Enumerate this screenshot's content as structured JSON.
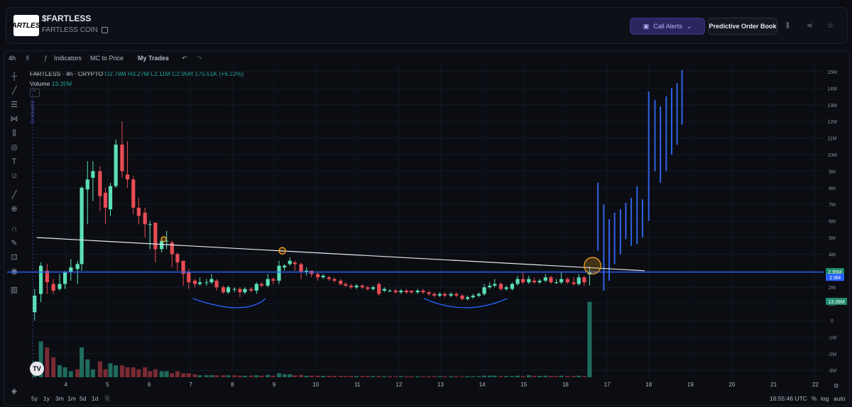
{
  "header": {
    "logo_text": "FARTLESS",
    "token_name": "$FARTLESS",
    "token_subname": "FARTLESS COIN",
    "call_alerts_label": "Call Alerts",
    "order_book_label": "Predictive Order Book",
    "icons": [
      "bars-icon",
      "share-icon",
      "star-icon"
    ]
  },
  "toolbar": {
    "interval": "4h",
    "indicators_label": "Indicators",
    "mc_to_price_label": "MC to Price",
    "my_trades_label": "My Trades"
  },
  "legend": {
    "symbol": "FARTLESS · 4h · CRYPTO",
    "open": "O2.78M",
    "high": "H3.27M",
    "low": "L2.11M",
    "close": "C2.95M",
    "change": "175.51K (+6.32%)",
    "volume_label": "Volume",
    "volume_value": "13.39M"
  },
  "bottom": {
    "ranges": [
      "5y",
      "1y",
      "3m",
      "1m",
      "5d",
      "1d"
    ],
    "time": "16:55:46 UTC",
    "percent_label": "%",
    "log_label": "log",
    "auto_label": "auto"
  },
  "colors": {
    "up": "#5ce0b8",
    "down": "#e84c55",
    "accent": "#2962ff",
    "highlight": "#f0a020"
  },
  "chart_data": {
    "type": "candlestick",
    "y_axis_ticks": [
      "15M",
      "14M",
      "13M",
      "12M",
      "11M",
      "10M",
      "9M",
      "8M",
      "7M",
      "6M",
      "5M",
      "4M",
      "3M",
      "2M",
      "1M",
      "0",
      "-1M",
      "-2M",
      "-3M"
    ],
    "ylim": [
      -3,
      15.2
    ],
    "x_ticks": [
      "4",
      "5",
      "6",
      "7",
      "8",
      "9",
      "10",
      "11",
      "12",
      "13",
      "14",
      "15",
      "16",
      "17",
      "18",
      "19",
      "20",
      "21",
      "22"
    ],
    "xlim": [
      3.1,
      22.2
    ],
    "price_labels": [
      {
        "value": "2.95M",
        "price": 2.95
      },
      {
        "value": "2.9M",
        "price": 2.6
      }
    ],
    "volume_label": "13.39M",
    "graduated_label": "Graduated",
    "graduated_x": 3.2,
    "horizontal_line": 2.92,
    "trendline": [
      [
        3.3,
        5.0
      ],
      [
        17.9,
        3.0
      ]
    ],
    "circles": [
      {
        "x": 6.35,
        "y": 4.9,
        "r": 0.15
      },
      {
        "x": 9.2,
        "y": 4.2,
        "r": 0.2
      },
      {
        "x": 16.65,
        "y": 3.3,
        "r": 0.5
      }
    ],
    "arcs": [
      [
        7.05,
        8.3,
        8.8
      ],
      [
        12.6,
        13.6,
        14.6
      ]
    ],
    "candles": [
      [
        3.25,
        0.5,
        1.5,
        0.0,
        1.9
      ],
      [
        3.4,
        1.6,
        3.3,
        1.1,
        3.5
      ],
      [
        3.55,
        3.0,
        2.3,
        1.6,
        3.4
      ],
      [
        3.7,
        2.2,
        1.8,
        1.6,
        2.5
      ],
      [
        3.85,
        1.9,
        2.2,
        1.8,
        2.8
      ],
      [
        3.98,
        2.2,
        2.9,
        1.9,
        3.0
      ],
      [
        4.12,
        2.9,
        3.2,
        2.4,
        3.7
      ],
      [
        4.28,
        3.1,
        3.4,
        2.2,
        3.6
      ],
      [
        4.38,
        3.4,
        8.0,
        3.0,
        8.1
      ],
      [
        4.52,
        7.9,
        8.5,
        5.8,
        9.6
      ],
      [
        4.65,
        8.6,
        9.0,
        7.2,
        9.6
      ],
      [
        4.82,
        9.0,
        7.5,
        6.6,
        9.3
      ],
      [
        4.95,
        7.7,
        6.8,
        5.8,
        8.0
      ],
      [
        5.07,
        6.7,
        8.1,
        6.3,
        8.3
      ],
      [
        5.2,
        8.1,
        10.6,
        8.0,
        10.9
      ],
      [
        5.35,
        10.6,
        9.0,
        8.6,
        12.0
      ],
      [
        5.48,
        8.8,
        8.5,
        8.0,
        10.8
      ],
      [
        5.62,
        8.5,
        6.8,
        6.4,
        8.7
      ],
      [
        5.75,
        6.8,
        6.3,
        5.8,
        7.4
      ],
      [
        5.9,
        6.5,
        5.8,
        5.0,
        6.8
      ],
      [
        6.02,
        5.8,
        5.8,
        4.3,
        6.0
      ],
      [
        6.15,
        5.9,
        4.3,
        3.5,
        5.9
      ],
      [
        6.3,
        4.3,
        4.8,
        4.1,
        5.0
      ],
      [
        6.42,
        4.8,
        4.8,
        4.3,
        5.4
      ],
      [
        6.55,
        4.7,
        4.0,
        3.2,
        4.8
      ],
      [
        6.68,
        4.0,
        3.5,
        3.0,
        4.1
      ],
      [
        6.82,
        3.6,
        2.8,
        2.1,
        3.6
      ],
      [
        6.95,
        2.9,
        2.3,
        1.9,
        3.1
      ],
      [
        7.1,
        2.4,
        2.2,
        2.0,
        2.5
      ],
      [
        7.22,
        2.2,
        2.3,
        2.1,
        2.6
      ],
      [
        7.38,
        2.3,
        2.3,
        2.1,
        2.5
      ],
      [
        7.5,
        2.3,
        2.5,
        2.2,
        2.8
      ],
      [
        7.62,
        2.4,
        2.0,
        1.8,
        2.5
      ],
      [
        7.78,
        2.0,
        1.7,
        1.6,
        2.1
      ],
      [
        7.9,
        1.7,
        2.0,
        1.6,
        2.1
      ],
      [
        8.05,
        1.9,
        1.9,
        1.7,
        2.0
      ],
      [
        8.18,
        1.9,
        1.7,
        1.4,
        2.0
      ],
      [
        8.3,
        1.7,
        1.9,
        1.6,
        2.0
      ],
      [
        8.45,
        1.9,
        1.8,
        1.7,
        2.0
      ],
      [
        8.58,
        1.8,
        2.2,
        1.6,
        2.3
      ],
      [
        8.7,
        2.2,
        2.1,
        2.0,
        2.3
      ],
      [
        8.85,
        2.1,
        2.5,
        2.0,
        2.8
      ],
      [
        8.98,
        2.5,
        2.4,
        2.2,
        2.6
      ],
      [
        9.12,
        2.4,
        3.3,
        2.2,
        3.6
      ],
      [
        9.25,
        3.2,
        3.3,
        3.0,
        3.4
      ],
      [
        9.38,
        3.4,
        3.6,
        3.3,
        3.8
      ],
      [
        9.5,
        3.5,
        3.4,
        3.0,
        3.6
      ],
      [
        9.65,
        3.4,
        2.9,
        2.5,
        3.5
      ],
      [
        9.78,
        2.9,
        3.0,
        2.7,
        3.2
      ],
      [
        9.9,
        3.0,
        2.8,
        2.6,
        3.0
      ],
      [
        10.05,
        2.8,
        2.6,
        2.4,
        2.9
      ],
      [
        10.18,
        2.6,
        2.7,
        2.5,
        2.8
      ],
      [
        10.32,
        2.6,
        2.5,
        2.4,
        2.7
      ],
      [
        10.45,
        2.5,
        2.4,
        2.3,
        2.6
      ],
      [
        10.6,
        2.4,
        2.2,
        2.1,
        2.5
      ],
      [
        10.72,
        2.2,
        2.1,
        2.0,
        2.3
      ],
      [
        10.85,
        2.1,
        2.0,
        1.9,
        2.2
      ],
      [
        10.98,
        2.0,
        2.1,
        1.9,
        2.2
      ],
      [
        11.12,
        2.1,
        2.0,
        1.9,
        2.2
      ],
      [
        11.25,
        2.0,
        1.9,
        1.8,
        2.1
      ],
      [
        11.38,
        1.9,
        2.0,
        1.8,
        2.1
      ],
      [
        11.52,
        2.2,
        1.6,
        1.5,
        2.3
      ],
      [
        11.65,
        1.8,
        1.9,
        1.7,
        2.0
      ],
      [
        11.78,
        1.8,
        1.8,
        1.7,
        1.9
      ],
      [
        11.92,
        1.8,
        1.7,
        1.6,
        1.9
      ],
      [
        12.05,
        1.7,
        1.8,
        1.6,
        1.9
      ],
      [
        12.18,
        1.8,
        1.7,
        1.6,
        1.9
      ],
      [
        12.3,
        1.8,
        1.7,
        1.6,
        1.8
      ],
      [
        12.45,
        1.7,
        1.8,
        1.6,
        1.9
      ],
      [
        12.58,
        1.8,
        1.7,
        1.6,
        1.9
      ],
      [
        12.72,
        1.7,
        1.6,
        1.5,
        1.8
      ],
      [
        12.85,
        1.6,
        1.5,
        1.4,
        1.7
      ],
      [
        12.98,
        1.5,
        1.6,
        1.4,
        1.7
      ],
      [
        13.1,
        1.6,
        1.5,
        1.4,
        1.7
      ],
      [
        13.25,
        1.5,
        1.6,
        1.4,
        1.7
      ],
      [
        13.38,
        1.6,
        1.5,
        1.4,
        1.7
      ],
      [
        13.52,
        1.5,
        1.3,
        1.2,
        1.6
      ],
      [
        13.65,
        1.3,
        1.4,
        1.2,
        1.5
      ],
      [
        13.78,
        1.4,
        1.5,
        1.3,
        1.6
      ],
      [
        13.92,
        1.5,
        1.6,
        1.4,
        1.7
      ],
      [
        14.05,
        1.6,
        2.0,
        1.5,
        2.2
      ],
      [
        14.18,
        2.0,
        2.1,
        1.9,
        2.3
      ],
      [
        14.3,
        2.1,
        2.2,
        2.0,
        2.5
      ],
      [
        14.45,
        2.2,
        1.9,
        1.8,
        2.3
      ],
      [
        14.58,
        1.9,
        2.0,
        1.8,
        2.1
      ],
      [
        14.72,
        1.9,
        2.2,
        1.8,
        2.3
      ],
      [
        14.85,
        2.2,
        2.5,
        2.1,
        2.7
      ],
      [
        14.98,
        2.5,
        2.3,
        2.2,
        2.9
      ],
      [
        15.12,
        2.3,
        2.5,
        2.2,
        2.7
      ],
      [
        15.25,
        2.4,
        2.3,
        2.2,
        2.6
      ],
      [
        15.38,
        2.3,
        2.4,
        2.2,
        2.5
      ],
      [
        15.52,
        2.4,
        2.6,
        2.3,
        2.8
      ],
      [
        15.65,
        2.6,
        2.3,
        2.2,
        2.7
      ],
      [
        15.78,
        2.3,
        2.3,
        2.2,
        2.5
      ],
      [
        15.9,
        2.3,
        2.5,
        2.2,
        2.9
      ],
      [
        16.05,
        2.5,
        2.3,
        2.2,
        2.6
      ],
      [
        16.2,
        2.3,
        2.2,
        2.1,
        2.6
      ],
      [
        16.32,
        2.2,
        2.6,
        2.1,
        2.8
      ],
      [
        16.45,
        2.6,
        2.3,
        2.1,
        2.7
      ],
      [
        16.58,
        2.78,
        2.95,
        2.11,
        3.27
      ]
    ],
    "projection_lines": [
      [
        16.78,
        4.2,
        8.3
      ],
      [
        16.92,
        1.8,
        7.0
      ],
      [
        17.05,
        2.4,
        6.1
      ],
      [
        17.18,
        3.4,
        6.5
      ],
      [
        17.32,
        4.0,
        6.7
      ],
      [
        17.45,
        4.9,
        7.1
      ],
      [
        17.58,
        4.5,
        7.4
      ],
      [
        17.72,
        4.6,
        8.1
      ],
      [
        17.85,
        5.0,
        7.3
      ],
      [
        18.0,
        6.0,
        13.8
      ],
      [
        18.15,
        9.0,
        13.3
      ],
      [
        18.28,
        8.3,
        12.9
      ],
      [
        18.42,
        9.0,
        13.5
      ],
      [
        18.55,
        10.0,
        14.0
      ],
      [
        18.68,
        10.6,
        14.3
      ],
      [
        18.8,
        11.8,
        15.1
      ]
    ],
    "volumes": [
      [
        3.25,
        0.8,
        1
      ],
      [
        3.4,
        1.8,
        1
      ],
      [
        3.55,
        1.5,
        0
      ],
      [
        3.7,
        1.0,
        0
      ],
      [
        3.85,
        0.6,
        1
      ],
      [
        3.98,
        0.5,
        1
      ],
      [
        4.12,
        0.3,
        1
      ],
      [
        4.28,
        0.4,
        0
      ],
      [
        4.38,
        1.5,
        1
      ],
      [
        4.52,
        0.9,
        1
      ],
      [
        4.65,
        0.4,
        1
      ],
      [
        4.82,
        0.8,
        0
      ],
      [
        4.95,
        0.4,
        0
      ],
      [
        5.07,
        0.7,
        1
      ],
      [
        5.2,
        0.6,
        1
      ],
      [
        5.35,
        0.6,
        0
      ],
      [
        5.48,
        0.5,
        0
      ],
      [
        5.62,
        0.5,
        0
      ],
      [
        5.75,
        0.4,
        0
      ],
      [
        5.9,
        0.5,
        0
      ],
      [
        6.02,
        0.3,
        0
      ],
      [
        6.15,
        0.4,
        0
      ],
      [
        6.3,
        0.3,
        1
      ],
      [
        6.42,
        0.3,
        1
      ],
      [
        6.55,
        0.2,
        0
      ],
      [
        6.68,
        0.3,
        0
      ],
      [
        6.82,
        0.2,
        0
      ],
      [
        6.95,
        0.2,
        0
      ],
      [
        7.1,
        0.15,
        0
      ],
      [
        7.22,
        0.1,
        1
      ],
      [
        7.38,
        0.1,
        1
      ],
      [
        7.5,
        0.1,
        1
      ],
      [
        7.62,
        0.1,
        0
      ],
      [
        7.78,
        0.1,
        0
      ],
      [
        7.9,
        0.1,
        1
      ],
      [
        8.05,
        0.1,
        0
      ],
      [
        8.18,
        0.08,
        0
      ],
      [
        8.3,
        0.08,
        1
      ],
      [
        8.45,
        0.08,
        0
      ],
      [
        8.58,
        0.1,
        1
      ],
      [
        8.7,
        0.08,
        0
      ],
      [
        8.85,
        0.12,
        1
      ],
      [
        8.98,
        0.08,
        0
      ],
      [
        9.12,
        0.2,
        1
      ],
      [
        9.25,
        0.15,
        1
      ],
      [
        9.38,
        0.15,
        1
      ],
      [
        9.5,
        0.1,
        0
      ],
      [
        9.65,
        0.12,
        0
      ],
      [
        9.78,
        0.08,
        1
      ],
      [
        9.9,
        0.08,
        0
      ],
      [
        10.05,
        0.08,
        0
      ],
      [
        10.18,
        0.07,
        1
      ],
      [
        10.32,
        0.07,
        0
      ],
      [
        10.45,
        0.07,
        0
      ],
      [
        10.6,
        0.07,
        0
      ],
      [
        10.72,
        0.06,
        0
      ],
      [
        10.85,
        0.06,
        0
      ],
      [
        10.98,
        0.06,
        1
      ],
      [
        11.12,
        0.06,
        0
      ],
      [
        11.25,
        0.06,
        0
      ],
      [
        11.38,
        0.06,
        1
      ],
      [
        11.52,
        0.06,
        0
      ],
      [
        11.65,
        0.05,
        1
      ],
      [
        11.78,
        0.05,
        0
      ],
      [
        11.92,
        0.05,
        0
      ],
      [
        12.05,
        0.05,
        1
      ],
      [
        12.18,
        0.05,
        0
      ],
      [
        12.3,
        0.05,
        0
      ],
      [
        12.45,
        0.05,
        1
      ],
      [
        12.58,
        0.05,
        0
      ],
      [
        12.72,
        0.05,
        0
      ],
      [
        12.85,
        0.05,
        0
      ],
      [
        12.98,
        0.05,
        1
      ],
      [
        13.1,
        0.05,
        0
      ],
      [
        13.25,
        0.05,
        1
      ],
      [
        13.38,
        0.05,
        0
      ],
      [
        13.52,
        0.05,
        0
      ],
      [
        13.65,
        0.05,
        1
      ],
      [
        13.78,
        0.05,
        1
      ],
      [
        13.92,
        0.05,
        1
      ],
      [
        14.05,
        0.08,
        1
      ],
      [
        14.18,
        0.08,
        1
      ],
      [
        14.3,
        0.08,
        1
      ],
      [
        14.45,
        0.06,
        0
      ],
      [
        14.58,
        0.06,
        1
      ],
      [
        14.72,
        0.06,
        1
      ],
      [
        14.85,
        0.08,
        1
      ],
      [
        14.98,
        0.06,
        0
      ],
      [
        15.12,
        0.1,
        1
      ],
      [
        15.25,
        0.07,
        0
      ],
      [
        15.38,
        0.07,
        1
      ],
      [
        15.52,
        0.08,
        1
      ],
      [
        15.65,
        0.07,
        0
      ],
      [
        15.78,
        0.06,
        0
      ],
      [
        15.9,
        0.08,
        1
      ],
      [
        16.05,
        0.06,
        0
      ],
      [
        16.2,
        0.06,
        0
      ],
      [
        16.32,
        0.08,
        1
      ],
      [
        16.45,
        0.06,
        0
      ],
      [
        16.58,
        3.8,
        1
      ]
    ]
  }
}
